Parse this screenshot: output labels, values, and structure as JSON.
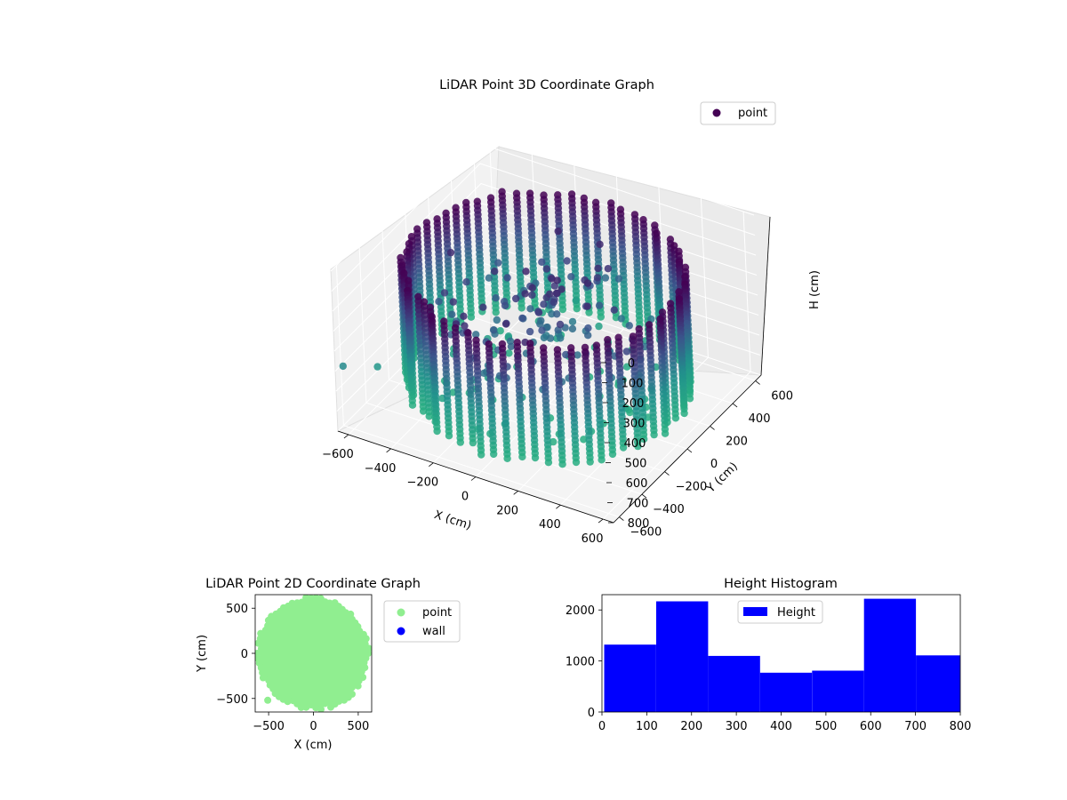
{
  "chart_data": [
    {
      "type": "scatter",
      "title": "LiDAR Point 3D Coordinate Graph",
      "xlabel": "X (cm)",
      "ylabel": "Y (cm)",
      "zlabel": "H (cm)",
      "legend": [
        "point"
      ],
      "legend_position": "top-right",
      "xlim": [
        -650,
        650
      ],
      "ylim": [
        -650,
        650
      ],
      "zlim": [
        0,
        800
      ],
      "z_axis_inverted": true,
      "x_ticks": [
        "−600",
        "−400",
        "−200",
        "0",
        "200",
        "400",
        "600"
      ],
      "y_ticks": [
        "−600",
        "−400",
        "−200",
        "0",
        "200",
        "400",
        "600"
      ],
      "z_ticks": [
        "0",
        "100",
        "200",
        "300",
        "400",
        "500",
        "600",
        "700",
        "800"
      ],
      "colormap": "viridis (by height)",
      "grid": true,
      "structure": {
        "ring_radius_cm": 580,
        "ring_columns": 64,
        "column_height_range_cm": [
          130,
          720
        ],
        "colors": [
          "#440154",
          "#3b528b",
          "#21918c",
          "#27ad81"
        ]
      }
    },
    {
      "type": "scatter",
      "title": "LiDAR Point 2D Coordinate Graph",
      "xlabel": "X (cm)",
      "ylabel": "Y (cm)",
      "xlim": [
        -650,
        650
      ],
      "ylim": [
        -650,
        650
      ],
      "x_ticks": [
        "−500",
        "0",
        "500"
      ],
      "y_ticks": [
        "500",
        "0",
        "−500"
      ],
      "legend_position": "outside right",
      "series": [
        {
          "name": "point",
          "color": "#90ee90",
          "region_radius_cm": 600
        },
        {
          "name": "wall",
          "color": "#0000ff",
          "points": []
        }
      ]
    },
    {
      "type": "bar",
      "subtype": "histogram",
      "title": "Height Histogram",
      "xlim": [
        0,
        800
      ],
      "ylim": [
        0,
        2300
      ],
      "x_ticks": [
        "0",
        "100",
        "200",
        "300",
        "400",
        "500",
        "600",
        "700",
        "800"
      ],
      "y_ticks": [
        "0",
        "1000",
        "2000"
      ],
      "legend": [
        "Height"
      ],
      "legend_position": "top-center",
      "color": "#0000ff",
      "bin_edges": [
        5,
        121,
        237,
        353,
        469,
        585,
        701,
        817
      ],
      "values": [
        1320,
        2170,
        1100,
        770,
        810,
        2220,
        1110
      ]
    }
  ]
}
